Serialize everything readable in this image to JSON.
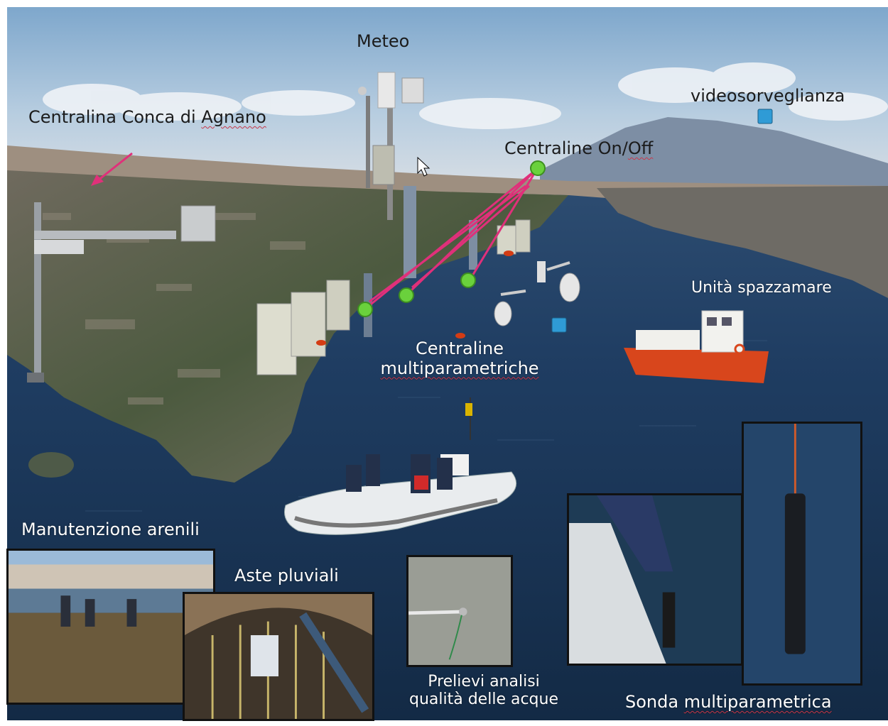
{
  "labels": {
    "meteo": "Meteo",
    "centralina_agnano_prefix": "Centralina Conca di ",
    "centralina_agnano_word": "Agnano",
    "videosorveglianza": "videosorveglianza",
    "centraline_onoff_prefix": "Centraline On/",
    "centraline_onoff_word": "Off",
    "unita_spazzamare": "Unità spazzamare",
    "centraline_multi_line1": "Centraline",
    "centraline_multi_line2": "multiparametriche",
    "manutenzione_arenili": "Manutenzione arenili",
    "aste_pluviali": "Aste pluviali",
    "prelievi_line1": "Prelievi analisi",
    "prelievi_line2": "qualità delle acque",
    "sonda_prefix": "Sonda ",
    "sonda_word": "multiparametrica"
  },
  "colors": {
    "sky_top": "#8fb3d3",
    "sea": "#1d3a5c",
    "marker_green": "#6ad13c",
    "arrow_magenta": "#e0307a",
    "marker_blue": "#2f9bd6",
    "marker_red": "#d43c14"
  }
}
